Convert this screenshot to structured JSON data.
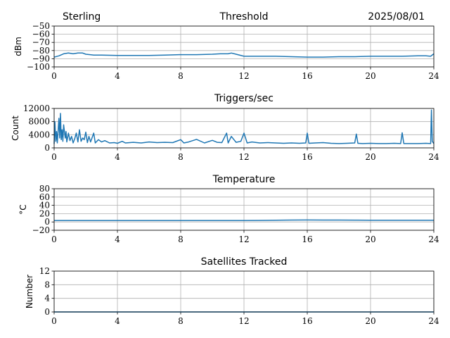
{
  "header": {
    "station": "Sterling",
    "date": "2025/08/01"
  },
  "colors": {
    "series": "#1f77b4",
    "grid": "#b0b0b0"
  },
  "chart_data": [
    {
      "type": "line",
      "title": "Threshold",
      "ylabel": "dBm",
      "xlim": [
        0,
        24
      ],
      "ylim": [
        -100,
        -50
      ],
      "xticks": [
        "0",
        "4",
        "8",
        "12",
        "16",
        "20",
        "24"
      ],
      "yticks": [
        "−50",
        "−60",
        "−70",
        "−80",
        "−90",
        "−100"
      ],
      "ytick_values": [
        -50,
        -60,
        -70,
        -80,
        -90,
        -100
      ],
      "grid": true,
      "series": [
        {
          "x": [
            0,
            0.3,
            0.6,
            0.9,
            1.2,
            1.5,
            1.8,
            2.0,
            2.5,
            3,
            4,
            5,
            6,
            7,
            8,
            9,
            10,
            10.5,
            11,
            11.2,
            11.5,
            12,
            12.5,
            13,
            14,
            15,
            16,
            16.5,
            17,
            18,
            19,
            20,
            21,
            22,
            23,
            23.5,
            23.8,
            24
          ],
          "y": [
            -88,
            -86.5,
            -84,
            -83,
            -84,
            -83,
            -83,
            -84.5,
            -85.5,
            -85.5,
            -86,
            -86,
            -86,
            -85.5,
            -85,
            -85,
            -84.5,
            -84,
            -84,
            -83,
            -84.5,
            -87,
            -87,
            -87,
            -87,
            -87.5,
            -88,
            -88,
            -88,
            -87.5,
            -87.5,
            -87,
            -87,
            -87,
            -86.5,
            -86.5,
            -87,
            -84
          ]
        }
      ]
    },
    {
      "type": "line",
      "title": "Triggers/sec",
      "ylabel": "Count",
      "xlim": [
        0,
        24
      ],
      "ylim": [
        0,
        12000
      ],
      "xticks": [
        "0",
        "4",
        "8",
        "12",
        "16",
        "20",
        "24"
      ],
      "yticks": [
        "12000",
        "8000",
        "4000",
        "0"
      ],
      "ytick_values": [
        12000,
        8000,
        4000,
        0
      ],
      "grid": true,
      "series": [
        {
          "x": [
            0,
            0.05,
            0.1,
            0.15,
            0.2,
            0.3,
            0.35,
            0.4,
            0.45,
            0.5,
            0.55,
            0.6,
            0.7,
            0.75,
            0.8,
            0.9,
            1.0,
            1.1,
            1.2,
            1.3,
            1.4,
            1.5,
            1.6,
            1.7,
            1.8,
            1.9,
            2.0,
            2.1,
            2.2,
            2.3,
            2.5,
            2.6,
            2.8,
            3.0,
            3.2,
            3.5,
            3.8,
            4.0,
            4.3,
            4.5,
            5,
            5.5,
            6,
            6.5,
            7,
            7.5,
            8,
            8.2,
            8.5,
            9,
            9.5,
            10,
            10.3,
            10.6,
            10.9,
            11.0,
            11.2,
            11.5,
            11.8,
            12,
            12.2,
            12.5,
            13,
            13.5,
            14,
            14.5,
            15,
            15.5,
            15.9,
            16.0,
            16.1,
            16.5,
            17,
            17.5,
            18,
            18.5,
            19,
            19.1,
            19.2,
            19.5,
            20,
            20.5,
            21,
            21.5,
            21.9,
            22.0,
            22.1,
            22.5,
            23,
            23.5,
            23.8,
            23.85,
            23.9,
            24
          ],
          "y": [
            1200,
            8000,
            2000,
            5000,
            1500,
            9000,
            3000,
            10500,
            2500,
            5500,
            2000,
            7000,
            3000,
            5000,
            1800,
            4500,
            2200,
            3500,
            1500,
            2800,
            4500,
            1800,
            5500,
            2000,
            3000,
            2500,
            4800,
            1600,
            3500,
            1800,
            4500,
            1500,
            2500,
            1800,
            2200,
            1500,
            1600,
            1400,
            2000,
            1500,
            1700,
            1500,
            1800,
            1600,
            1700,
            1600,
            2500,
            1500,
            1800,
            2600,
            1500,
            2300,
            1700,
            1600,
            4500,
            1500,
            3500,
            1700,
            2000,
            4500,
            1500,
            1800,
            1500,
            1600,
            1500,
            1400,
            1500,
            1400,
            1500,
            4500,
            1400,
            1500,
            1600,
            1400,
            1300,
            1400,
            1500,
            4200,
            1400,
            1300,
            1400,
            1300,
            1300,
            1400,
            1300,
            4600,
            1300,
            1300,
            1300,
            1400,
            1300,
            11500,
            2000,
            1300
          ]
        }
      ]
    },
    {
      "type": "line",
      "title": "Temperature",
      "ylabel": "°C",
      "xlim": [
        0,
        24
      ],
      "ylim": [
        -20,
        80
      ],
      "xticks": [
        "0",
        "4",
        "8",
        "12",
        "16",
        "20",
        "24"
      ],
      "yticks": [
        "80",
        "60",
        "40",
        "20",
        "0",
        "−20"
      ],
      "ytick_values": [
        80,
        60,
        40,
        20,
        0,
        -20
      ],
      "grid": true,
      "series": [
        {
          "x": [
            0,
            2,
            4,
            6,
            8,
            10,
            12,
            13,
            14,
            15,
            16,
            17,
            18,
            19,
            20,
            21,
            22,
            23,
            24
          ],
          "y": [
            3.5,
            3.5,
            3.5,
            3.5,
            3.5,
            3.5,
            3.5,
            3.8,
            4.2,
            4.5,
            4.8,
            4.6,
            4.5,
            4.4,
            4.3,
            4.2,
            4.1,
            4.0,
            4.0
          ]
        }
      ]
    },
    {
      "type": "line",
      "title": "Satellites Tracked",
      "ylabel": "Number",
      "xlim": [
        0,
        24
      ],
      "ylim": [
        0,
        12
      ],
      "xticks": [
        "0",
        "4",
        "8",
        "12",
        "16",
        "20",
        "24"
      ],
      "yticks": [
        "12",
        "8",
        "4",
        "0"
      ],
      "ytick_values": [
        12,
        8,
        4,
        0
      ],
      "grid": true,
      "series": [
        {
          "x": [
            0,
            24
          ],
          "y": [
            0,
            0
          ]
        }
      ]
    }
  ]
}
